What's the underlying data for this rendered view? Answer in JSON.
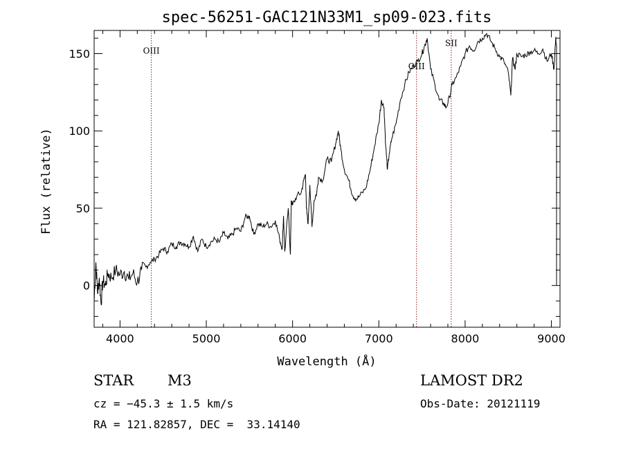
{
  "chart_data": {
    "type": "line",
    "title": "spec-56251-GAC121N33M1_sp09-023.fits",
    "xlabel": "Wavelength (Å)",
    "ylabel": "Flux (relative)",
    "xlim": [
      3700,
      9100
    ],
    "ylim": [
      -27,
      165
    ],
    "xticks": [
      4000,
      5000,
      6000,
      7000,
      8000,
      9000
    ],
    "yticks": [
      0,
      50,
      100,
      150
    ],
    "grid": false,
    "series": [
      {
        "x": [
          3700,
          3720,
          3740,
          3760,
          3780,
          3800,
          3830,
          3860,
          3900,
          3950,
          4000,
          4050,
          4100,
          4150,
          4200,
          4250,
          4300,
          4350,
          4400,
          4450,
          4500,
          4550,
          4600,
          4650,
          4700,
          4750,
          4800,
          4850,
          4900,
          4950,
          5000,
          5050,
          5100,
          5150,
          5200,
          5250,
          5300,
          5350,
          5400,
          5450,
          5500,
          5550,
          5600,
          5650,
          5700,
          5750,
          5800,
          5850,
          5880,
          5895,
          5910,
          5950,
          5975,
          5985,
          6000,
          6050,
          6100,
          6130,
          6150,
          6160,
          6180,
          6200,
          6225,
          6250,
          6280,
          6300,
          6350,
          6400,
          6450,
          6500,
          6530,
          6560,
          6600,
          6650,
          6700,
          6740,
          6780,
          6850,
          6900,
          6950,
          7000,
          7030,
          7060,
          7080,
          7100,
          7120,
          7150,
          7200,
          7250,
          7300,
          7350,
          7400,
          7450,
          7500,
          7530,
          7560,
          7600,
          7650,
          7700,
          7750,
          7780,
          7820,
          7850,
          7900,
          7950,
          8000,
          8050,
          8100,
          8150,
          8200,
          8250,
          8300,
          8350,
          8400,
          8450,
          8500,
          8530,
          8550,
          8580,
          8600,
          8650,
          8700,
          8750,
          8800,
          8850,
          8900,
          8950,
          9000,
          9030,
          9050,
          9060
        ],
        "values": [
          -10,
          15,
          -5,
          5,
          -12,
          3,
          0,
          8,
          5,
          10,
          7,
          9,
          4,
          8,
          2,
          10,
          12,
          15,
          17,
          20,
          24,
          22,
          27,
          25,
          28,
          27,
          25,
          32,
          22,
          30,
          25,
          28,
          30,
          28,
          34,
          30,
          33,
          37,
          35,
          44,
          45,
          33,
          40,
          38,
          40,
          38,
          42,
          30,
          24,
          45,
          22,
          50,
          20,
          55,
          52,
          58,
          60,
          68,
          72,
          50,
          40,
          65,
          38,
          55,
          60,
          70,
          68,
          82,
          80,
          92,
          100,
          88,
          75,
          68,
          58,
          56,
          58,
          63,
          75,
          90,
          105,
          120,
          115,
          90,
          75,
          85,
          95,
          105,
          120,
          130,
          138,
          142,
          145,
          150,
          155,
          160,
          140,
          130,
          120,
          118,
          115,
          122,
          130,
          135,
          142,
          150,
          155,
          152,
          158,
          160,
          163,
          158,
          153,
          148,
          145,
          138,
          123,
          147,
          140,
          150,
          148,
          149,
          151,
          152,
          150,
          153,
          145,
          150,
          140,
          160,
          155
        ],
        "color": "#000000"
      }
    ],
    "lines": [
      {
        "label": "OIII",
        "x": 4363,
        "label_y": 150,
        "color": "#8b1a1a"
      },
      {
        "label": "OIII",
        "x": 7437,
        "label_y": 140,
        "color": "#8b1a1a"
      },
      {
        "label": "SII",
        "x": 7839,
        "label_y": 155,
        "color": "#8b1a1a"
      }
    ]
  },
  "info": {
    "class_label": "STAR",
    "subclass": "M3",
    "survey": "LAMOST DR2",
    "cz": "cz = −45.3 ± 1.5 km/s",
    "obs_date": "Obs-Date: 20121119",
    "coords": "RA = 121.82857, DEC =  33.14140"
  }
}
